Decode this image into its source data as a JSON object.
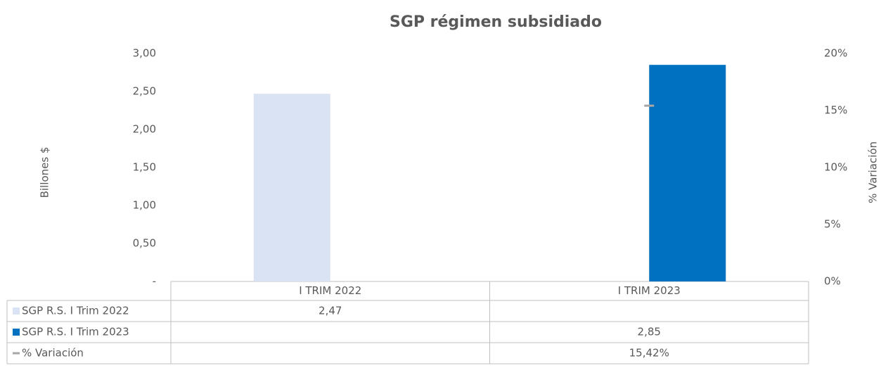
{
  "chart_data": {
    "type": "bar",
    "title": "SGP régimen subsidiado",
    "y_label": "Billones $",
    "y2_label": "% Variación",
    "categories": [
      "I TRIM 2022",
      "I TRIM 2023"
    ],
    "series": [
      {
        "name": "SGP R.S. I Trim 2022",
        "type": "bar",
        "color": "#dae3f3",
        "values": [
          2.47,
          null
        ],
        "value_labels": [
          "2,47",
          null
        ]
      },
      {
        "name": "SGP R.S. I Trim 2023",
        "type": "bar",
        "color": "#0070c0",
        "values": [
          null,
          2.85
        ],
        "value_labels": [
          null,
          "2,85"
        ]
      },
      {
        "name": "% Variación",
        "type": "line",
        "axis": "y2",
        "color": "#a6a6a6",
        "values": [
          null,
          15.42
        ],
        "value_labels": [
          null,
          "15,42%"
        ]
      }
    ],
    "ylim": [
      0,
      3
    ],
    "yticks": [
      {
        "value": 0,
        "label": "-"
      },
      {
        "value": 0.5,
        "label": "0,50"
      },
      {
        "value": 1,
        "label": "1,00"
      },
      {
        "value": 1.5,
        "label": "1,50"
      },
      {
        "value": 2,
        "label": "2,00"
      },
      {
        "value": 2.5,
        "label": "2,50"
      },
      {
        "value": 3,
        "label": "3,00"
      }
    ],
    "y2lim": [
      0,
      20
    ],
    "y2ticks": [
      {
        "value": 0,
        "label": "0%"
      },
      {
        "value": 5,
        "label": "5%"
      },
      {
        "value": 10,
        "label": "10%"
      },
      {
        "value": 15,
        "label": "15%"
      },
      {
        "value": 20,
        "label": "20%"
      }
    ],
    "grid": false
  }
}
